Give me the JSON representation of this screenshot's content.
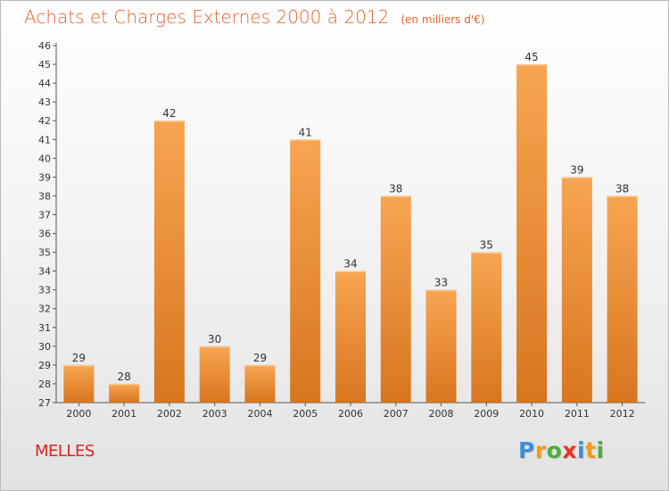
{
  "header": {
    "title": "Achats et Charges Externes 2000 à 2012",
    "unit": "(en milliers d'€)"
  },
  "place": "MELLES",
  "logo": {
    "text": "Proxiti",
    "letters": [
      {
        "ch": "P",
        "color": "#3a8fd8"
      },
      {
        "ch": "r",
        "color": "#f39a1d"
      },
      {
        "ch": "o",
        "color": "#4cae3a"
      },
      {
        "ch": "x",
        "color": "#e8312a"
      },
      {
        "ch": "i",
        "color": "#3a8fd8"
      },
      {
        "ch": "t",
        "color": "#f39a1d"
      },
      {
        "ch": "i",
        "color": "#4cae3a"
      }
    ]
  },
  "colors": {
    "bar_top": "#f7a552",
    "bar_bottom": "#d8761f",
    "title": "#e8612a",
    "place": "#e02020"
  },
  "chart_data": {
    "type": "bar",
    "categories": [
      "2000",
      "2001",
      "2002",
      "2003",
      "2004",
      "2005",
      "2006",
      "2007",
      "2008",
      "2009",
      "2010",
      "2011",
      "2012"
    ],
    "values": [
      29,
      28,
      42,
      30,
      29,
      41,
      34,
      38,
      33,
      35,
      45,
      39,
      38
    ],
    "ylim": [
      27,
      46
    ],
    "yticks": [
      27,
      28,
      29,
      30,
      31,
      32,
      33,
      34,
      35,
      36,
      37,
      38,
      39,
      40,
      41,
      42,
      43,
      44,
      45,
      46
    ],
    "grid": false,
    "legend": "none"
  }
}
